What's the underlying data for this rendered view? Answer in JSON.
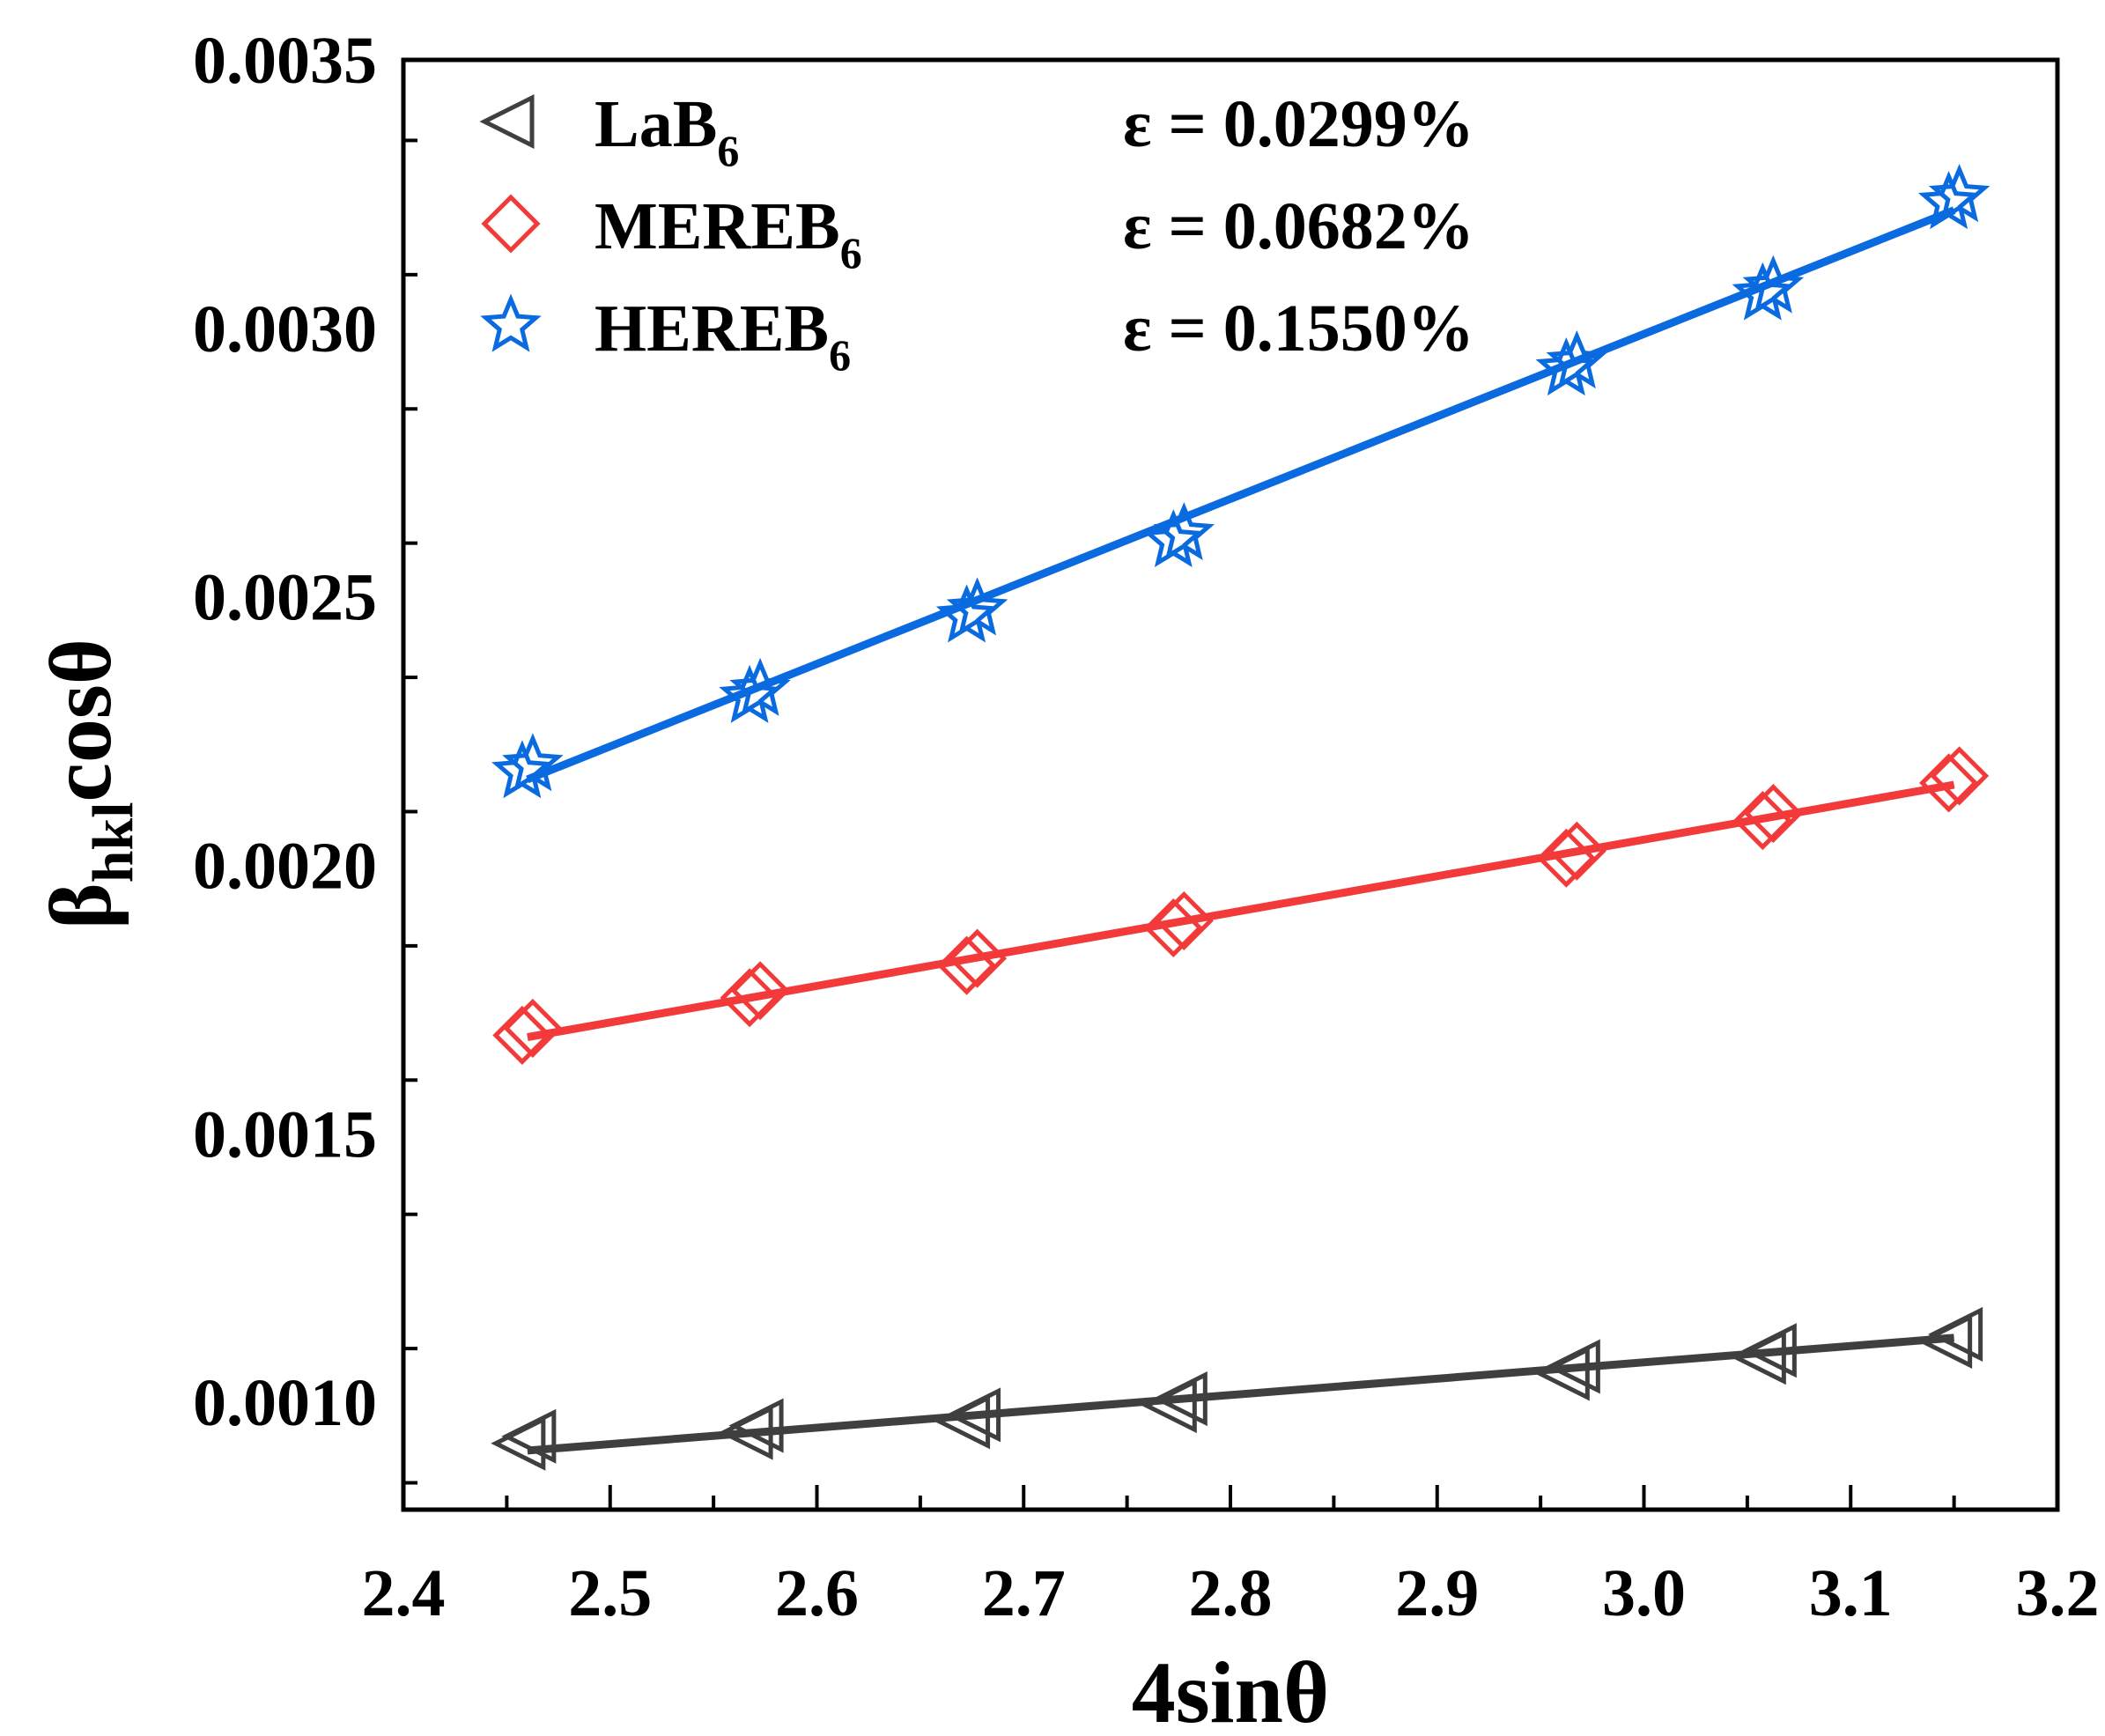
{
  "chart_data": {
    "type": "scatter",
    "xlabel": "4sinθ",
    "ylabel_main": "β",
    "ylabel_sub": "hkl",
    "ylabel_tail": "cosθ",
    "xlim": [
      2.4,
      3.2
    ],
    "ylim": [
      0.0008,
      0.0035
    ],
    "xticks": [
      "2.4",
      "2.5",
      "2.6",
      "2.7",
      "2.8",
      "2.9",
      "3.0",
      "3.1",
      "3.2"
    ],
    "yticks": [
      "0.0010",
      "0.0015",
      "0.0020",
      "0.0025",
      "0.0030",
      "0.0035"
    ],
    "grid": false,
    "legend_position": "top-left",
    "x": [
      2.46,
      2.57,
      2.675,
      2.775,
      2.965,
      3.06,
      3.15
    ],
    "series": [
      {
        "name": "LaB",
        "sub": "6",
        "strain": "ε = 0.0299%",
        "marker": "left-triangle",
        "color": "#3f3f3f",
        "values": [
          0.00093,
          0.00095,
          0.00097,
          0.001,
          0.00106,
          0.00109,
          0.00112
        ],
        "fit": [
          0.00091,
          0.00112
        ]
      },
      {
        "name": "MEREB",
        "sub": "6",
        "strain": "ε = 0.0682%",
        "marker": "diamond",
        "color": "#f23a3a",
        "values": [
          0.00169,
          0.00176,
          0.00182,
          0.00189,
          0.00202,
          0.00209,
          0.00216
        ],
        "fit": [
          0.00168,
          0.00215
        ]
      },
      {
        "name": "HEREB",
        "sub": "6",
        "strain": "ε = 0.1550%",
        "marker": "star",
        "color": "#0a6ae0",
        "values": [
          0.00218,
          0.00232,
          0.00247,
          0.00261,
          0.00293,
          0.00307,
          0.00324
        ],
        "fit": [
          0.00216,
          0.00322
        ]
      }
    ]
  }
}
